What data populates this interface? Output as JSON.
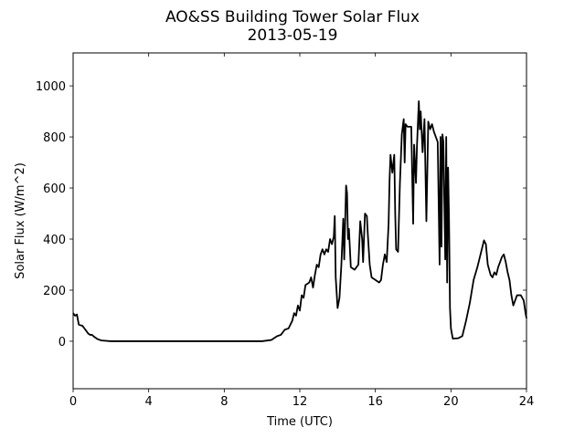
{
  "chart_data": {
    "type": "line",
    "title": "AO&SS Building Tower Solar Flux",
    "subtitle": "2013-05-19",
    "x_label": "Time (UTC)",
    "y_label": "Solar Flux (W/m^2)",
    "xlim": [
      0,
      24
    ],
    "ylim": [
      -186,
      1129
    ],
    "xticks": [
      0,
      4,
      8,
      12,
      16,
      20,
      24
    ],
    "yticks": [
      0,
      200,
      400,
      600,
      800,
      1000
    ],
    "series": [
      {
        "name": "Solar Flux",
        "color": "#000000",
        "x": [
          0,
          0.1,
          0.2,
          0.3,
          0.5,
          0.7,
          0.8,
          0.9,
          1.0,
          1.1,
          1.3,
          1.5,
          2,
          4,
          8,
          10,
          10.5,
          10.8,
          11,
          11.2,
          11.4,
          11.6,
          11.7,
          11.8,
          11.9,
          12,
          12.1,
          12.2,
          12.3,
          12.5,
          12.6,
          12.7,
          12.8,
          12.9,
          13.0,
          13.1,
          13.2,
          13.3,
          13.4,
          13.5,
          13.6,
          13.7,
          13.8,
          13.85,
          13.9,
          14.0,
          14.1,
          14.2,
          14.3,
          14.35,
          14.45,
          14.5,
          14.55,
          14.6,
          14.7,
          14.9,
          15.1,
          15.2,
          15.3,
          15.35,
          15.45,
          15.55,
          15.6,
          15.7,
          15.8,
          16.0,
          16.2,
          16.3,
          16.4,
          16.5,
          16.6,
          16.7,
          16.75,
          16.8,
          16.9,
          17.0,
          17.05,
          17.1,
          17.2,
          17.3,
          17.4,
          17.5,
          17.55,
          17.6,
          17.7,
          17.9,
          18.0,
          18.05,
          18.15,
          18.2,
          18.3,
          18.35,
          18.4,
          18.5,
          18.6,
          18.7,
          18.8,
          18.9,
          19.0,
          19.1,
          19.2,
          19.3,
          19.4,
          19.45,
          19.5,
          19.55,
          19.6,
          19.7,
          19.75,
          19.8,
          19.85,
          19.9,
          19.95,
          20.0,
          20.1,
          20.4,
          20.6,
          20.8,
          21.0,
          21.2,
          21.4,
          21.6,
          21.75,
          21.85,
          21.95,
          22.1,
          22.2,
          22.3,
          22.4,
          22.5,
          22.6,
          22.7,
          22.8,
          22.9,
          23.0,
          23.1,
          23.2,
          23.3,
          23.4,
          23.5,
          23.7,
          23.85,
          23.95,
          24
        ],
        "values": [
          110,
          100,
          105,
          65,
          60,
          40,
          30,
          25,
          25,
          18,
          8,
          3,
          0,
          0,
          0,
          0,
          5,
          20,
          25,
          45,
          50,
          80,
          110,
          100,
          140,
          120,
          180,
          170,
          220,
          230,
          250,
          210,
          260,
          300,
          290,
          340,
          360,
          340,
          360,
          350,
          400,
          380,
          410,
          490,
          250,
          130,
          170,
          300,
          480,
          320,
          610,
          580,
          400,
          440,
          290,
          280,
          300,
          470,
          400,
          310,
          500,
          490,
          420,
          300,
          250,
          240,
          230,
          240,
          300,
          340,
          310,
          460,
          630,
          730,
          660,
          730,
          500,
          360,
          350,
          620,
          810,
          870,
          700,
          850,
          840,
          840,
          460,
          770,
          620,
          760,
          940,
          830,
          900,
          740,
          870,
          470,
          860,
          830,
          850,
          820,
          800,
          780,
          300,
          800,
          370,
          810,
          780,
          320,
          800,
          230,
          680,
          470,
          130,
          50,
          10,
          12,
          20,
          80,
          150,
          240,
          290,
          350,
          395,
          380,
          300,
          260,
          250,
          270,
          260,
          290,
          310,
          330,
          340,
          310,
          270,
          240,
          180,
          140,
          160,
          180,
          180,
          160,
          110,
          90
        ]
      }
    ]
  }
}
